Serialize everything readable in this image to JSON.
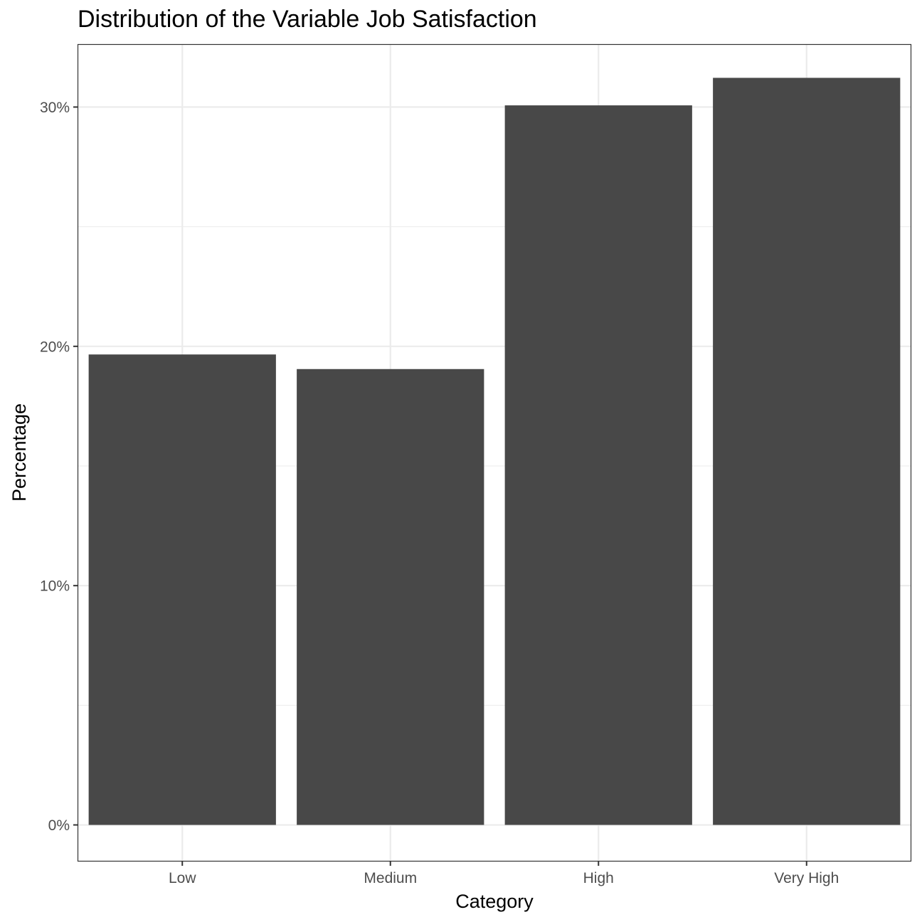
{
  "chart_data": {
    "type": "bar",
    "title": "Distribution of the Variable Job Satisfaction",
    "xlabel": "Category",
    "ylabel": "Percentage",
    "categories": [
      "Low",
      "Medium",
      "High",
      "Very High"
    ],
    "values": [
      19.66,
      19.05,
      30.07,
      31.22
    ],
    "ylim": [
      -1.5,
      32.6
    ],
    "yticks": [
      0,
      10,
      20,
      30
    ],
    "ytick_labels": [
      "0%",
      "10%",
      "20%",
      "30%"
    ],
    "grid": true,
    "legend": "none",
    "colors": {
      "bar": "#484848",
      "grid": "#ebebeb",
      "panel_border": "#333333",
      "tick_text": "#4d4d4d"
    }
  }
}
